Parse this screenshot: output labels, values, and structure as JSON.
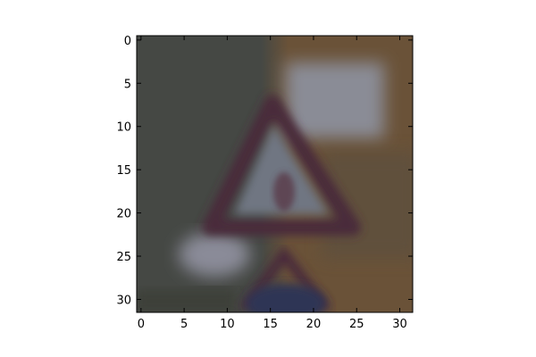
{
  "chart_data": {
    "type": "heatmap",
    "subtype": "image (imshow)",
    "title": "",
    "xlabel": "",
    "ylabel": "",
    "image_size": [
      32,
      32
    ],
    "xlim": [
      -0.5,
      31.5
    ],
    "ylim": [
      31.5,
      -0.5
    ],
    "y_axis_inverted": true,
    "x_ticks": [
      0,
      5,
      10,
      15,
      20,
      25,
      30
    ],
    "y_ticks": [
      0,
      5,
      10,
      15,
      20,
      25,
      30
    ],
    "x_tick_labels": [
      "0",
      "5",
      "10",
      "15",
      "20",
      "25",
      "30"
    ],
    "y_tick_labels": [
      "0",
      "5",
      "10",
      "15",
      "20",
      "25",
      "30"
    ],
    "grid": false,
    "legend": "none",
    "colors": {
      "background_left": "#454844",
      "background_right": "#6a5238",
      "sign_border": "#4a2a3a",
      "sign_interior": "#707682",
      "sign_panel": "#8a8c96",
      "lower_bright_patch": "#8a8b98",
      "bottom_blue": "#2f3554",
      "figure_background": "#ffffff",
      "axes_frame": "#000000"
    },
    "image_description_content": "blurred 32x32 traffic sign: red-bordered triangle on dark background"
  }
}
